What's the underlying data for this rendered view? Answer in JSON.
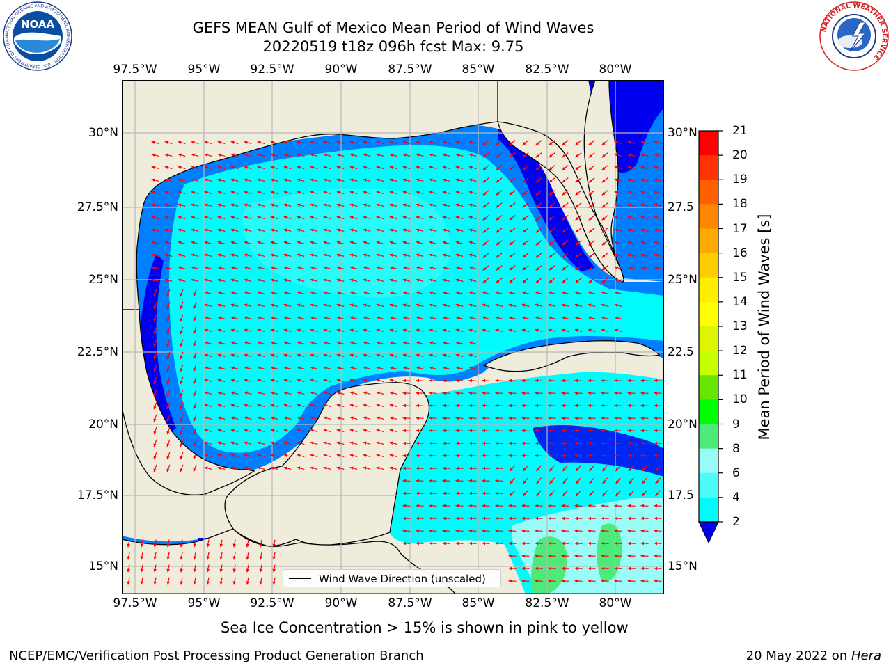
{
  "header": {
    "title_line1": "GEFS MEAN Gulf of Mexico Mean Period of Wind Waves",
    "title_line2": "20220519 t18z 096h fcst   Max: 9.75"
  },
  "logos": {
    "left": "NOAA",
    "left_ring_text": "NATIONAL OCEANIC AND ATMOSPHERIC ADMINISTRATION · U.S. DEPARTMENT OF COMMERCE",
    "right_ring_text": "NATIONAL WEATHER SERVICE"
  },
  "map": {
    "lon_labels": [
      "97.5°W",
      "95°W",
      "92.5°W",
      "90°W",
      "87.5°W",
      "85°W",
      "82.5°W",
      "80°W"
    ],
    "left_lat_labels": [
      "30°N",
      "27.5°N",
      "25°N",
      "22.5°N",
      "20°N",
      "17.5°N",
      "15°N"
    ],
    "right_lat_labels": [
      "30°N",
      "27.5",
      "25°N",
      "22.5",
      "20°N",
      "17.5",
      "15°N"
    ],
    "land_color": "#efecdc",
    "arrow_color": "#ff0000",
    "legend_label": "Wind Wave Direction (unscaled)"
  },
  "colorbar": {
    "label": "Mean Period of Wind Waves [s]",
    "ticks": [
      "21",
      "20",
      "19",
      "18",
      "17",
      "16",
      "15",
      "14",
      "13",
      "12",
      "11",
      "10",
      "9",
      "8",
      "6",
      "4",
      "2"
    ],
    "colors_top_to_bottom": [
      "#ff0000",
      "#ff3300",
      "#ff6000",
      "#ff8800",
      "#ffaa00",
      "#ffcc00",
      "#ffee00",
      "#ffff00",
      "#ddf500",
      "#c8ff00",
      "#66e600",
      "#00ff00",
      "#4dea7a",
      "#9afcf8",
      "#4dfbf8",
      "#00fbfa",
      "#0080ff",
      "#0000f0"
    ]
  },
  "notes": {
    "ice": "Sea Ice Concentration > 15% is shown in pink to yellow"
  },
  "footer": {
    "left": "NCEP/EMC/Verification Post Processing Product Generation Branch",
    "right_prefix": "20 May 2022 on ",
    "right_host": "Hera"
  }
}
